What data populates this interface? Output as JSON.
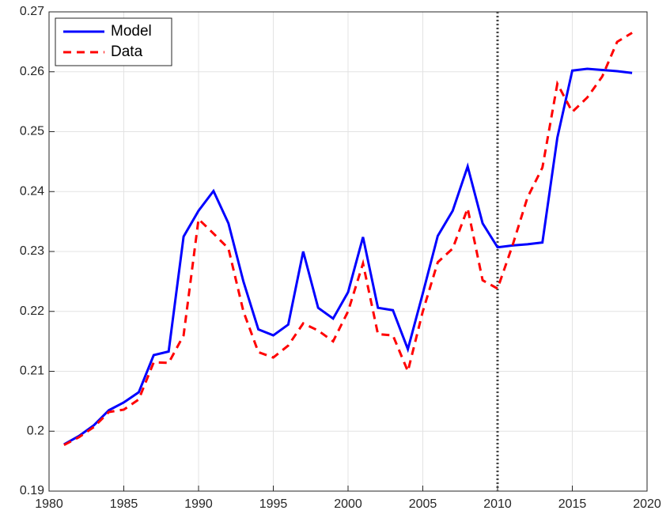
{
  "chart_data": {
    "type": "line",
    "x": [
      1981,
      1982,
      1983,
      1984,
      1985,
      1986,
      1987,
      1988,
      1989,
      1990,
      1991,
      1992,
      1993,
      1994,
      1995,
      1996,
      1997,
      1998,
      1999,
      2000,
      2001,
      2002,
      2003,
      2004,
      2005,
      2006,
      2007,
      2008,
      2009,
      2010,
      2011,
      2012,
      2013,
      2014,
      2015,
      2016,
      2017,
      2018,
      2019
    ],
    "series": [
      {
        "name": "Model",
        "color": "#0000ff",
        "dash": false,
        "values": [
          0.1978,
          0.1992,
          0.201,
          0.2035,
          0.2048,
          0.2065,
          0.2127,
          0.2133,
          0.2325,
          0.2368,
          0.2401,
          0.2347,
          0.225,
          0.217,
          0.216,
          0.2178,
          0.23,
          0.2206,
          0.2188,
          0.2232,
          0.2324,
          0.2206,
          0.2202,
          0.2137,
          0.223,
          0.2326,
          0.2368,
          0.2442,
          0.2347,
          0.2307,
          0.231,
          0.2312,
          0.2315,
          0.249,
          0.2602,
          0.2605,
          0.2603,
          0.2601,
          0.2598
        ]
      },
      {
        "name": "Data",
        "color": "#ff0000",
        "dash": true,
        "values": [
          0.1977,
          0.199,
          0.2007,
          0.2032,
          0.2036,
          0.2053,
          0.2115,
          0.2114,
          0.216,
          0.2354,
          0.233,
          0.2305,
          0.22,
          0.2132,
          0.2123,
          0.2143,
          0.218,
          0.2168,
          0.215,
          0.22,
          0.228,
          0.2162,
          0.216,
          0.21,
          0.22,
          0.2282,
          0.2305,
          0.2372,
          0.2252,
          0.2238,
          0.231,
          0.239,
          0.244,
          0.258,
          0.2533,
          0.2557,
          0.2592,
          0.265,
          0.2665
        ]
      }
    ],
    "xlim": [
      1980,
      2020
    ],
    "xticks": [
      1980,
      1985,
      1990,
      1995,
      2000,
      2005,
      2010,
      2015,
      2020
    ],
    "ylim": [
      0.19,
      0.27
    ],
    "yticks": [
      0.19,
      0.2,
      0.21,
      0.22,
      0.23,
      0.24,
      0.25,
      0.26,
      0.27
    ],
    "grid": true,
    "legend": "upper-left",
    "vline_x": 2010
  }
}
